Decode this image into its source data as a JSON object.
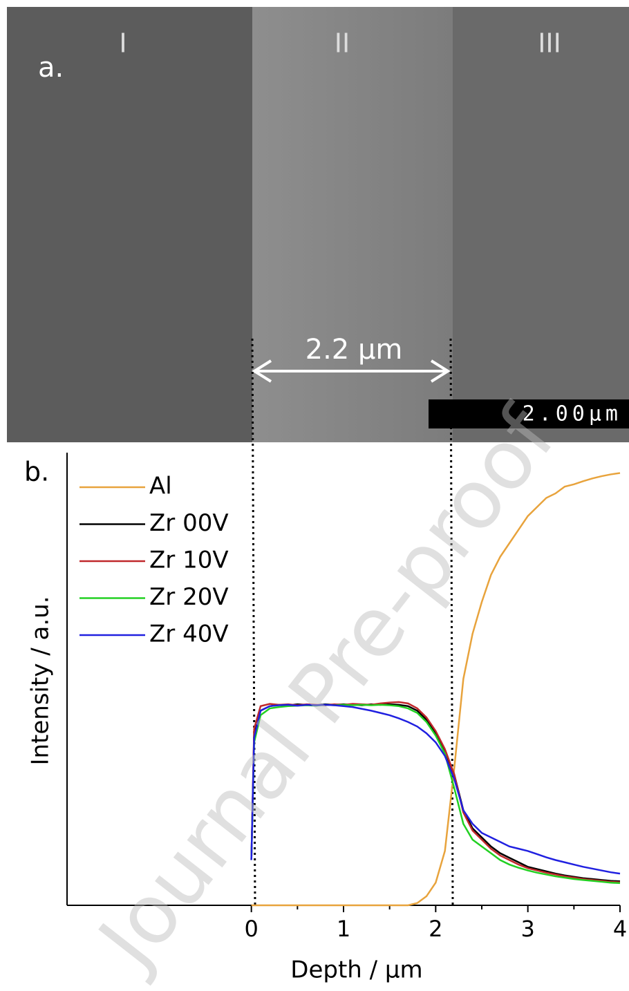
{
  "image_panel": {
    "label": "a.",
    "regions": [
      "I",
      "II",
      "III"
    ],
    "thickness_label": "2.2 µm",
    "scale_bar": "2.00µm"
  },
  "watermark": "Journal Pre-proof",
  "chart_data": {
    "type": "line",
    "panel_label": "b.",
    "x_label": "Depth / µm",
    "y_label": "Intensity / a.u.",
    "xlim": [
      -2,
      4
    ],
    "xticks": [
      0,
      1,
      2,
      3,
      4
    ],
    "ylim": [
      0,
      1
    ],
    "legend": "top-left",
    "x": [
      0,
      0.03,
      0.1,
      0.2,
      0.3,
      0.4,
      0.5,
      0.6,
      0.7,
      0.8,
      0.9,
      1.0,
      1.1,
      1.2,
      1.3,
      1.4,
      1.5,
      1.6,
      1.7,
      1.8,
      1.9,
      2.0,
      2.1,
      2.2,
      2.3,
      2.4,
      2.5,
      2.6,
      2.7,
      2.8,
      2.9,
      3.0,
      3.1,
      3.2,
      3.3,
      3.4,
      3.5,
      3.6,
      3.7,
      3.8,
      3.9,
      4.0
    ],
    "series": [
      {
        "name": "Al",
        "color": "#e8a33c",
        "values": [
          0,
          0,
          0,
          0,
          0,
          0,
          0,
          0,
          0,
          0,
          0,
          0,
          0,
          0,
          0,
          0,
          0,
          0,
          0,
          0.005,
          0.02,
          0.05,
          0.12,
          0.3,
          0.5,
          0.6,
          0.67,
          0.73,
          0.77,
          0.8,
          0.83,
          0.86,
          0.88,
          0.9,
          0.91,
          0.925,
          0.93,
          0.937,
          0.943,
          0.948,
          0.952,
          0.955
        ]
      },
      {
        "name": "Zr 00V",
        "color": "#000000",
        "values": [
          0.1,
          0.38,
          0.43,
          0.44,
          0.443,
          0.442,
          0.444,
          0.443,
          0.442,
          0.444,
          0.443,
          0.444,
          0.443,
          0.442,
          0.444,
          0.443,
          0.444,
          0.443,
          0.44,
          0.43,
          0.41,
          0.38,
          0.34,
          0.29,
          0.21,
          0.17,
          0.15,
          0.13,
          0.115,
          0.105,
          0.095,
          0.085,
          0.08,
          0.075,
          0.07,
          0.066,
          0.063,
          0.06,
          0.058,
          0.056,
          0.054,
          0.053
        ]
      },
      {
        "name": "Zr 10V",
        "color": "#c0282b",
        "values": [
          0.1,
          0.39,
          0.44,
          0.445,
          0.443,
          0.444,
          0.442,
          0.444,
          0.443,
          0.442,
          0.444,
          0.443,
          0.445,
          0.444,
          0.443,
          0.446,
          0.448,
          0.449,
          0.446,
          0.435,
          0.415,
          0.385,
          0.345,
          0.29,
          0.205,
          0.165,
          0.145,
          0.125,
          0.11,
          0.1,
          0.09,
          0.082,
          0.077,
          0.072,
          0.068,
          0.064,
          0.061,
          0.058,
          0.056,
          0.054,
          0.052,
          0.051
        ]
      },
      {
        "name": "Zr 20V",
        "color": "#22d022",
        "values": [
          0.1,
          0.36,
          0.42,
          0.435,
          0.438,
          0.44,
          0.441,
          0.442,
          0.441,
          0.443,
          0.442,
          0.443,
          0.442,
          0.443,
          0.442,
          0.443,
          0.442,
          0.44,
          0.435,
          0.425,
          0.405,
          0.375,
          0.335,
          0.26,
          0.18,
          0.145,
          0.13,
          0.115,
          0.1,
          0.09,
          0.083,
          0.077,
          0.072,
          0.068,
          0.064,
          0.061,
          0.058,
          0.056,
          0.054,
          0.052,
          0.05,
          0.049
        ]
      },
      {
        "name": "Zr 40V",
        "color": "#2020e0",
        "values": [
          0.1,
          0.37,
          0.43,
          0.44,
          0.442,
          0.443,
          0.441,
          0.443,
          0.442,
          0.443,
          0.442,
          0.44,
          0.438,
          0.434,
          0.43,
          0.425,
          0.42,
          0.413,
          0.405,
          0.395,
          0.38,
          0.36,
          0.33,
          0.28,
          0.21,
          0.18,
          0.16,
          0.15,
          0.14,
          0.13,
          0.125,
          0.12,
          0.113,
          0.106,
          0.1,
          0.095,
          0.09,
          0.085,
          0.081,
          0.077,
          0.073,
          0.07
        ]
      }
    ]
  }
}
